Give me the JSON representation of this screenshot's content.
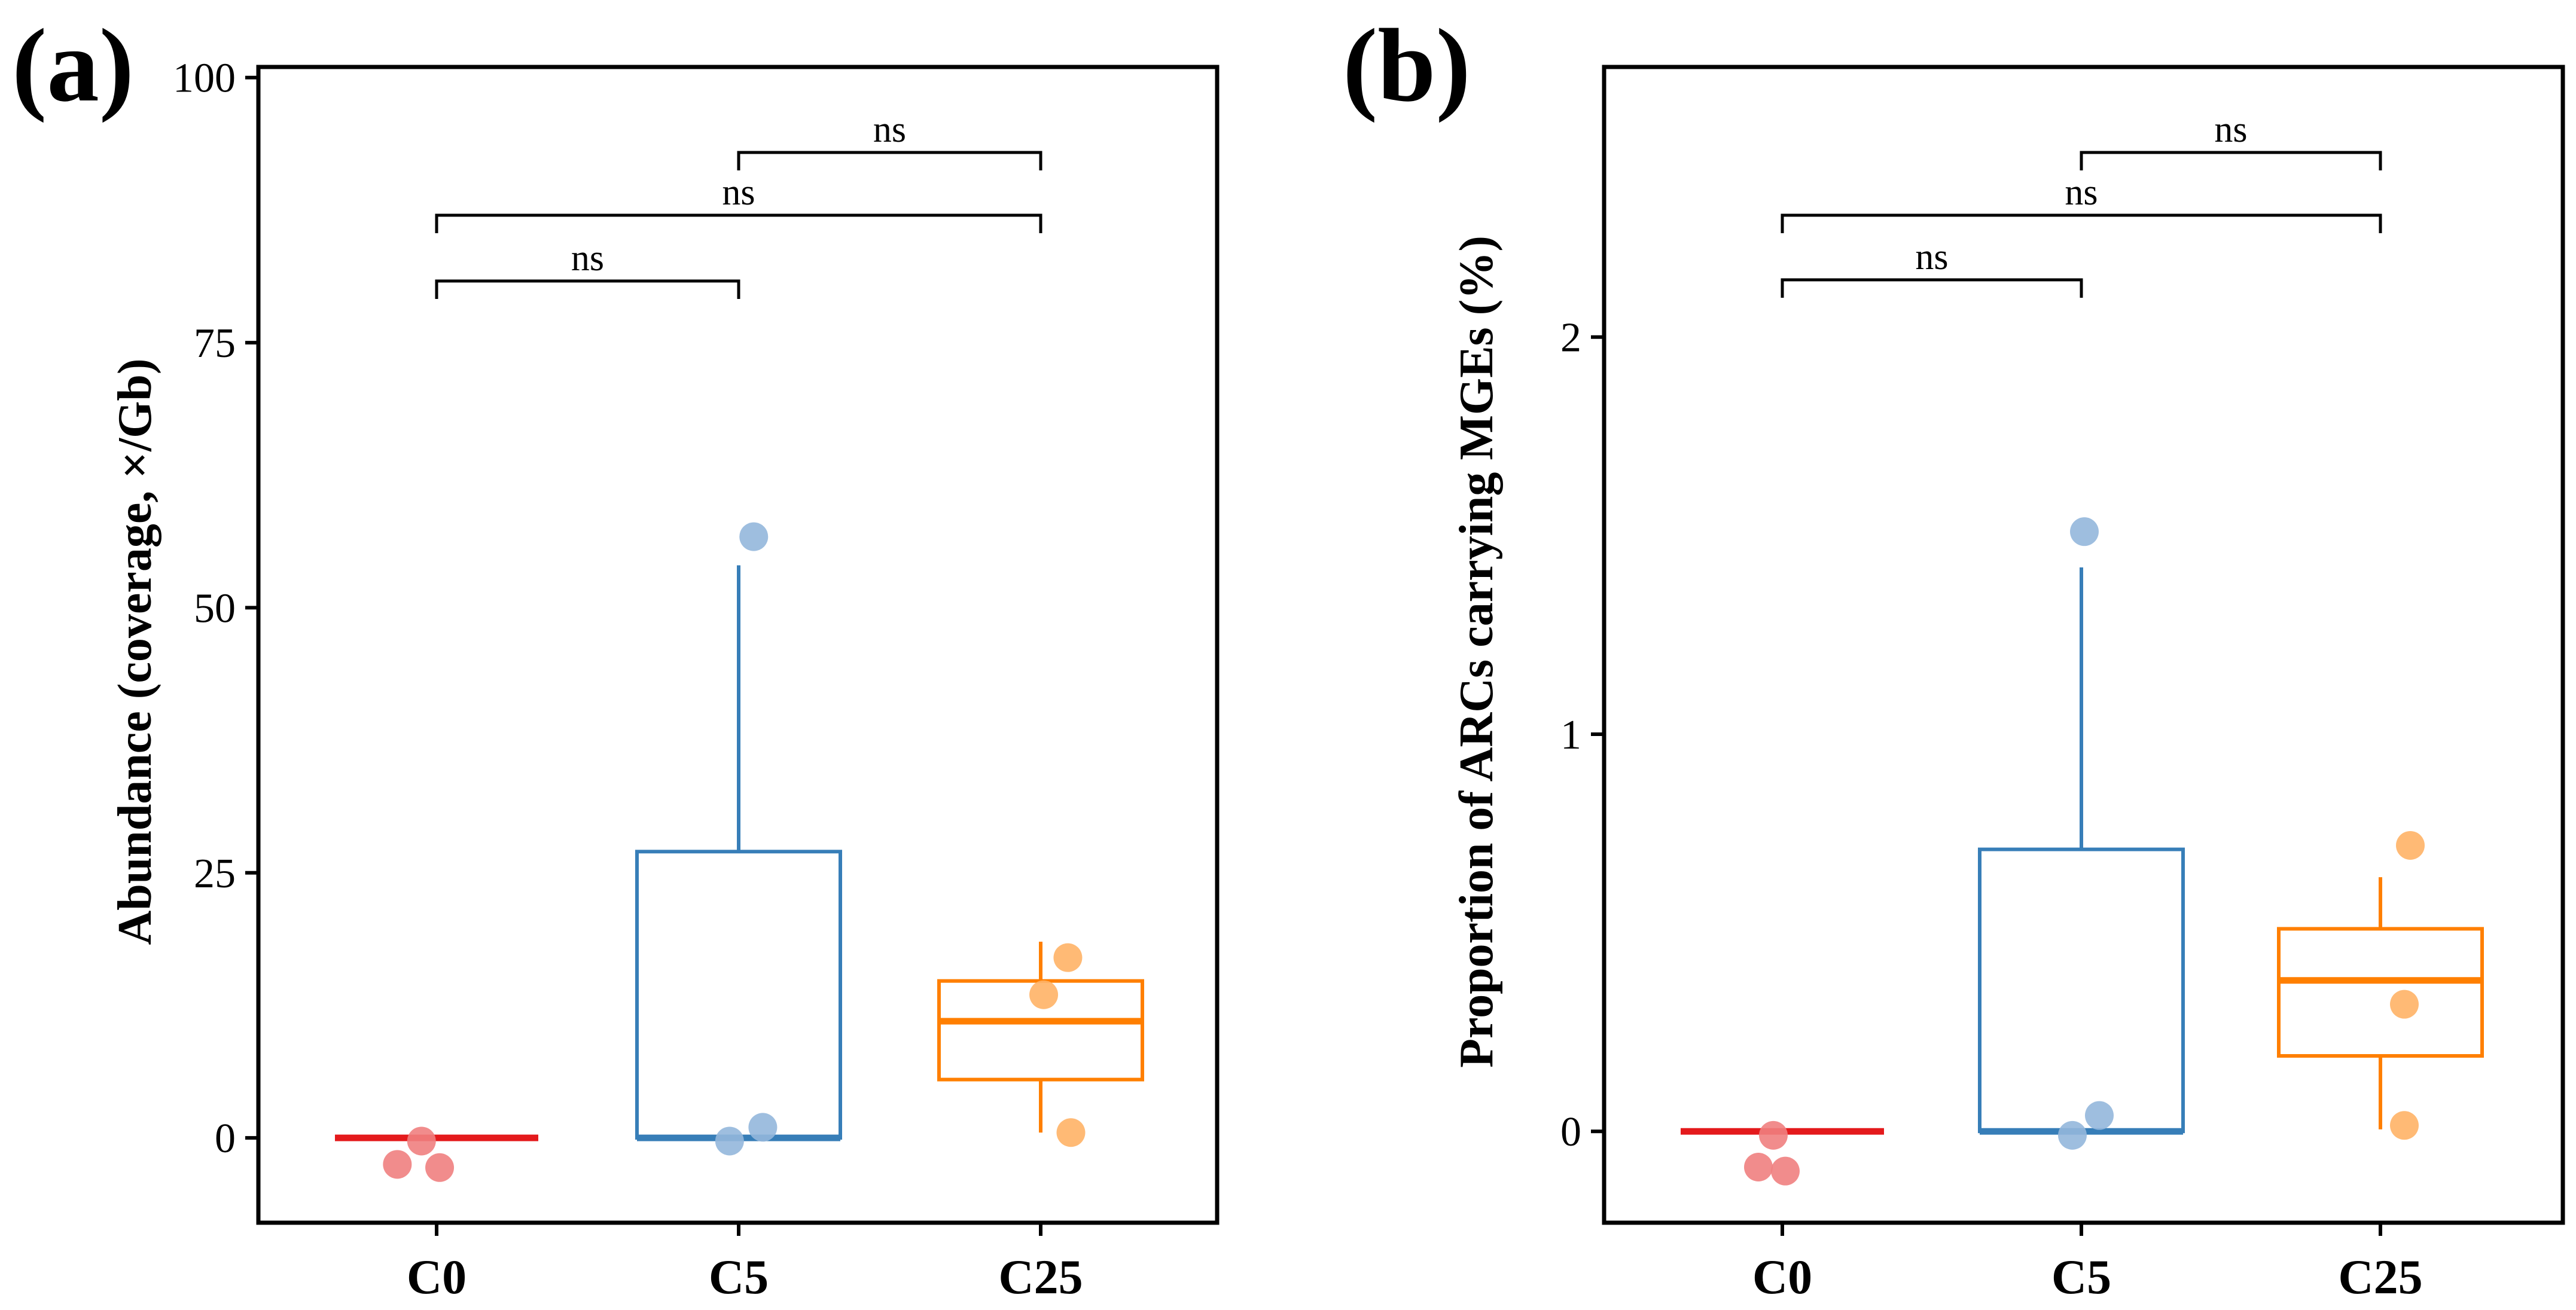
{
  "figure": {
    "panels": [
      {
        "panel_label": "(a)",
        "ylabel": "Abundance (coverage, ×/Gb)",
        "ytick_labels": [
          "0",
          "25",
          "50",
          "75",
          "100"
        ],
        "significance": [
          {
            "from": "C0",
            "to": "C5",
            "label": "ns"
          },
          {
            "from": "C0",
            "to": "C25",
            "label": "ns"
          },
          {
            "from": "C5",
            "to": "C25",
            "label": "ns"
          }
        ]
      },
      {
        "panel_label": "(b)",
        "ylabel": "Proportion of ARCs carrying MGEs (%)",
        "ytick_labels": [
          "0",
          "1",
          "2"
        ],
        "significance": [
          {
            "from": "C0",
            "to": "C5",
            "label": "ns"
          },
          {
            "from": "C0",
            "to": "C25",
            "label": "ns"
          },
          {
            "from": "C5",
            "to": "C25",
            "label": "ns"
          }
        ]
      }
    ]
  },
  "colors": {
    "C0": "#e41a1c",
    "C0_points": "#f08080",
    "C5": "#377eb8",
    "C5_points": "#93b7dc",
    "C25": "#ff7f00",
    "C25_points": "#ffb266",
    "axis": "#000000"
  },
  "chart_data": [
    {
      "type": "box",
      "title": "",
      "panel": "(a)",
      "xlabel": "",
      "ylabel": "Abundance (coverage, ×/Gb)",
      "categories": [
        "C0",
        "C5",
        "C25"
      ],
      "ylim": [
        -8,
        101
      ],
      "yticks": [
        0,
        25,
        50,
        75,
        100
      ],
      "grid": false,
      "boxes": [
        {
          "category": "C0",
          "q1": 0,
          "median": 0,
          "q3": 0,
          "whisker_low": 0,
          "whisker_high": 0
        },
        {
          "category": "C5",
          "q1": 0,
          "median": 0,
          "q3": 27,
          "whisker_low": 0,
          "whisker_high": 54
        },
        {
          "category": "C25",
          "q1": 5.5,
          "median": 11,
          "q3": 14.8,
          "whisker_low": 0.5,
          "whisker_high": 18.5
        }
      ],
      "points": [
        {
          "category": "C0",
          "jitter": -0.13,
          "y": -2.5
        },
        {
          "category": "C0",
          "jitter": -0.05,
          "y": -0.3
        },
        {
          "category": "C0",
          "jitter": 0.01,
          "y": -2.8
        },
        {
          "category": "C5",
          "jitter": 0.05,
          "y": 56.7
        },
        {
          "category": "C5",
          "jitter": -0.03,
          "y": -0.3
        },
        {
          "category": "C5",
          "jitter": 0.08,
          "y": 1.0
        },
        {
          "category": "C25",
          "jitter": 0.09,
          "y": 17.0
        },
        {
          "category": "C25",
          "jitter": 0.01,
          "y": 13.5
        },
        {
          "category": "C25",
          "jitter": 0.1,
          "y": 0.5
        }
      ]
    },
    {
      "type": "box",
      "title": "",
      "panel": "(b)",
      "xlabel": "",
      "ylabel": "Proportion of ARCs carrying MGEs (%)",
      "categories": [
        "C0",
        "C5",
        "C25"
      ],
      "ylim": [
        -0.23,
        2.68
      ],
      "yticks": [
        0,
        1,
        2
      ],
      "grid": false,
      "boxes": [
        {
          "category": "C0",
          "q1": 0,
          "median": 0,
          "q3": 0,
          "whisker_low": 0,
          "whisker_high": 0
        },
        {
          "category": "C5",
          "q1": 0,
          "median": 0,
          "q3": 0.71,
          "whisker_low": 0,
          "whisker_high": 1.42
        },
        {
          "category": "C25",
          "q1": 0.19,
          "median": 0.38,
          "q3": 0.51,
          "whisker_low": 0.005,
          "whisker_high": 0.64
        }
      ],
      "points": [
        {
          "category": "C0",
          "jitter": -0.08,
          "y": -0.09
        },
        {
          "category": "C0",
          "jitter": -0.03,
          "y": -0.01
        },
        {
          "category": "C0",
          "jitter": 0.01,
          "y": -0.1
        },
        {
          "category": "C5",
          "jitter": 0.01,
          "y": 1.51
        },
        {
          "category": "C5",
          "jitter": -0.03,
          "y": -0.01
        },
        {
          "category": "C5",
          "jitter": 0.06,
          "y": 0.04
        },
        {
          "category": "C25",
          "jitter": 0.1,
          "y": 0.72
        },
        {
          "category": "C25",
          "jitter": 0.08,
          "y": 0.32
        },
        {
          "category": "C25",
          "jitter": 0.08,
          "y": 0.015
        }
      ]
    }
  ]
}
